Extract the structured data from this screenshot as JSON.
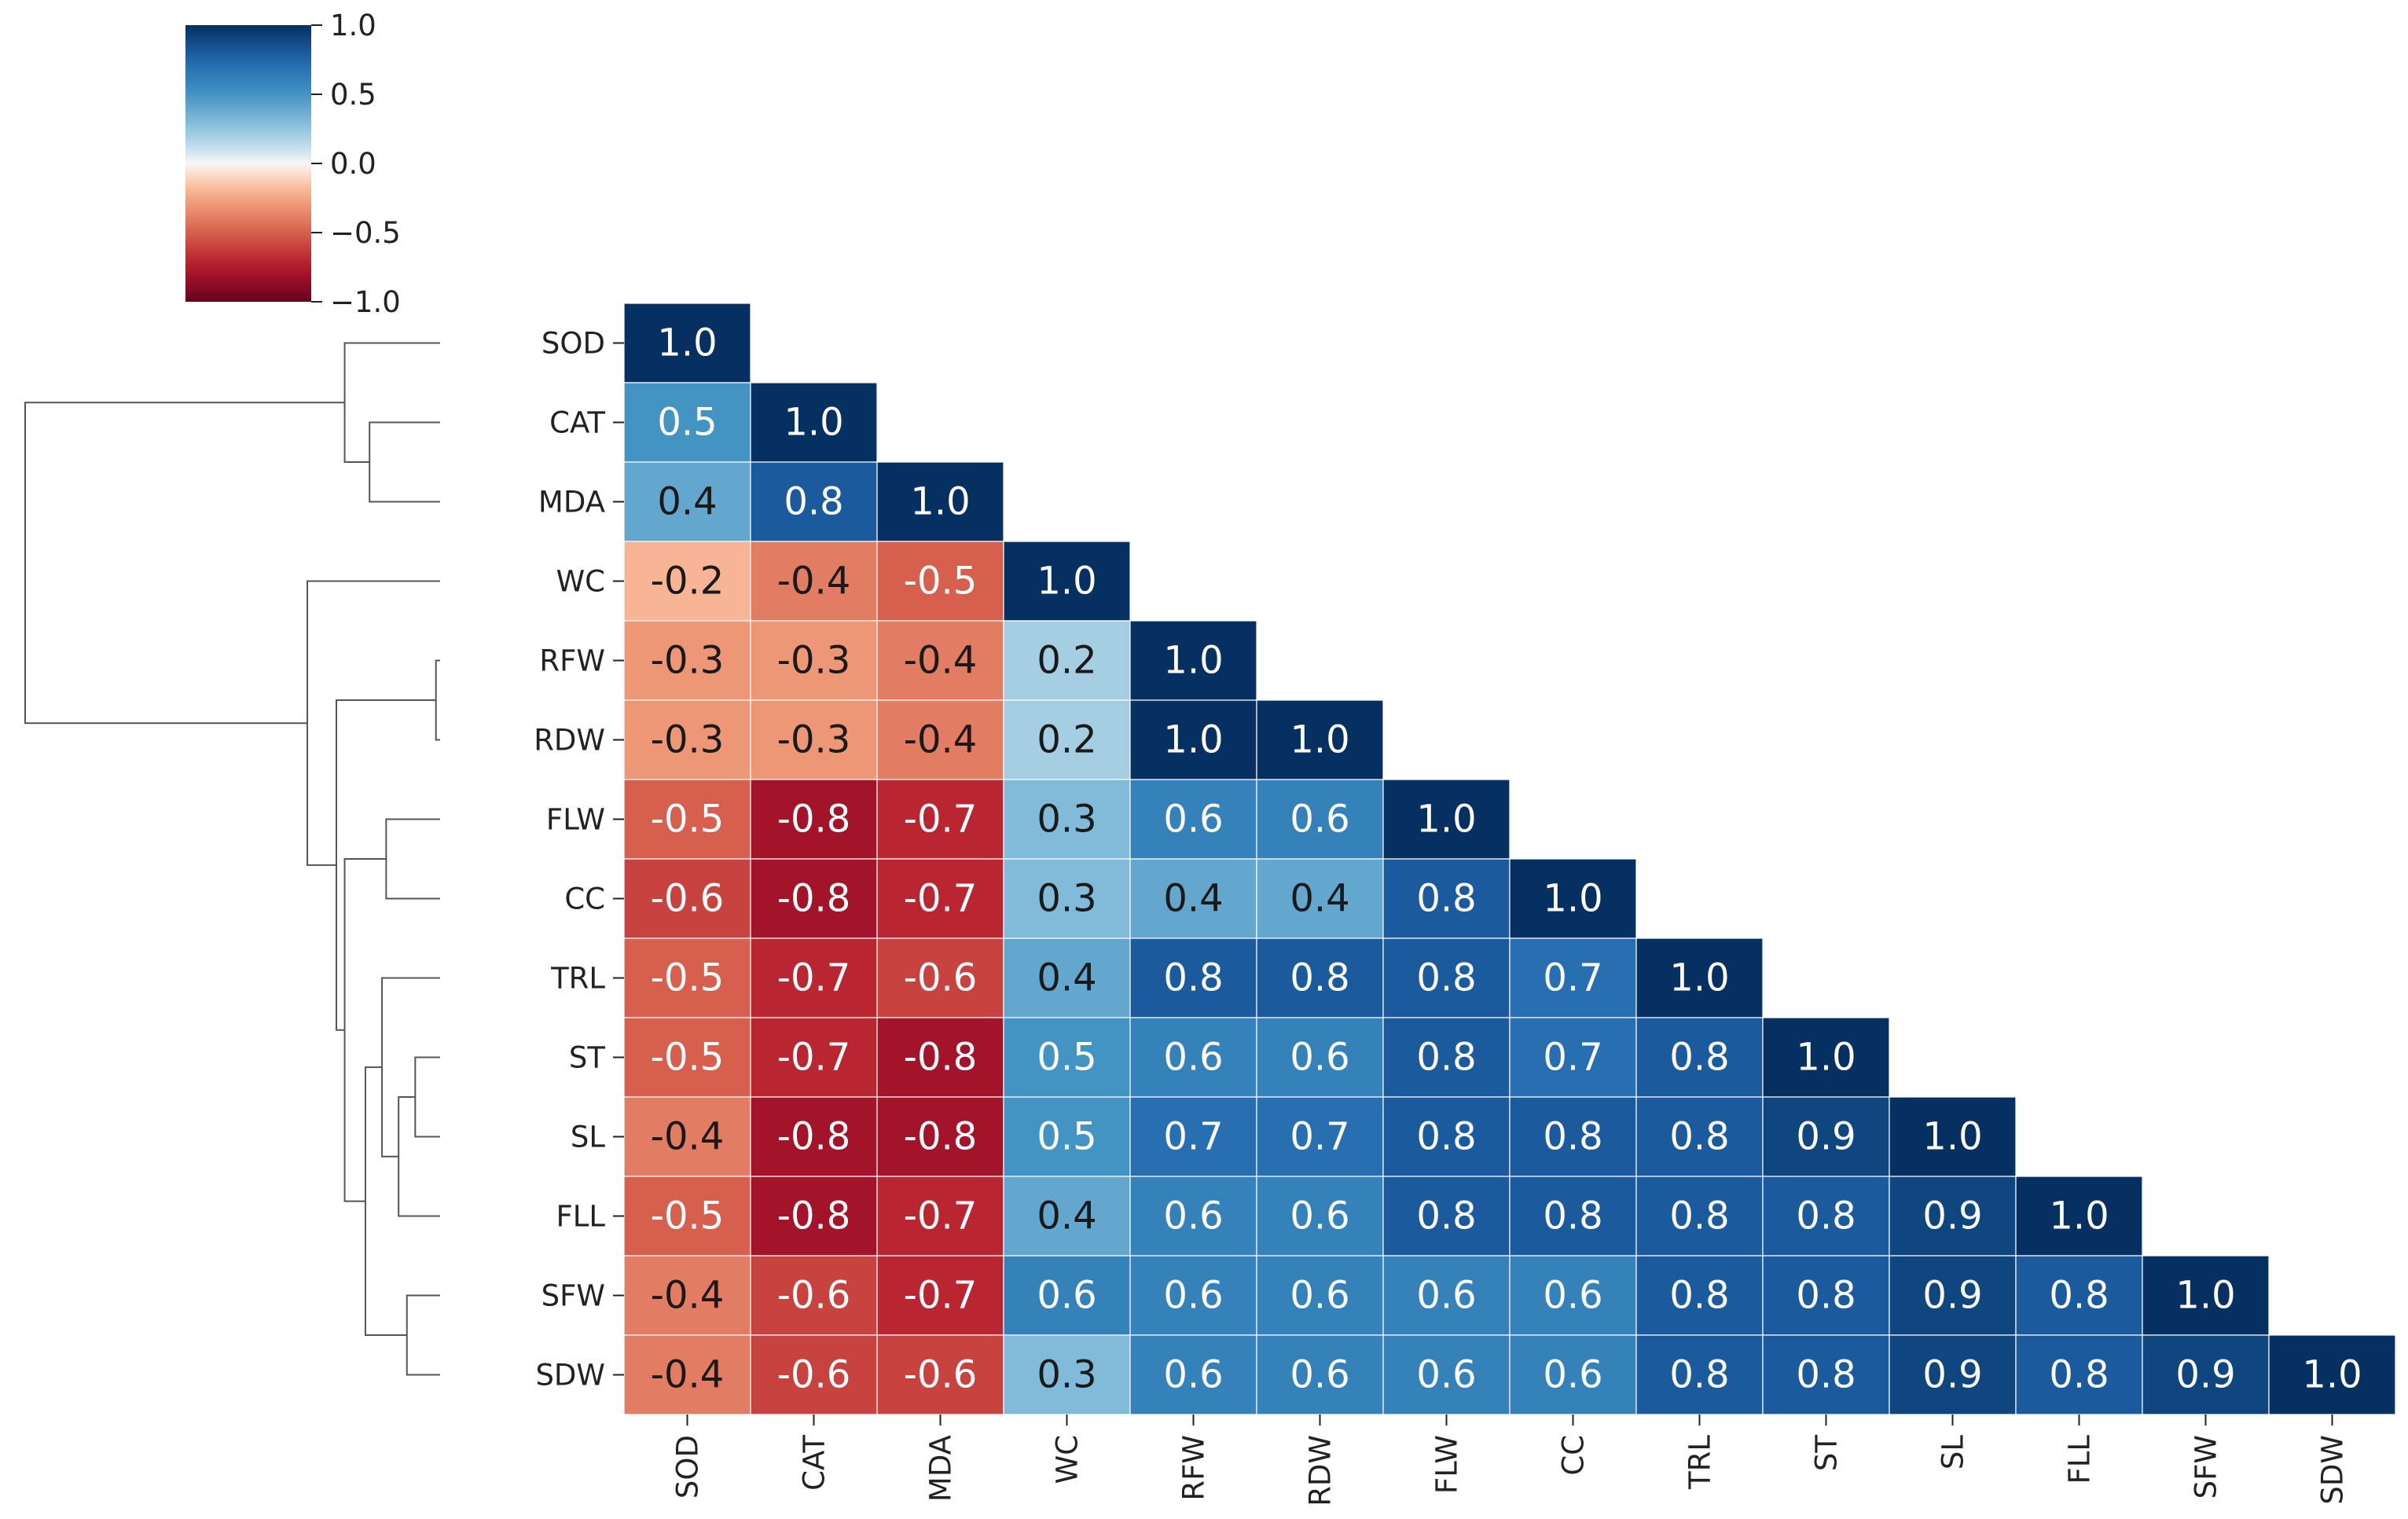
{
  "chart_data": {
    "type": "heatmap",
    "title": "",
    "variables": [
      "SOD",
      "CAT",
      "MDA",
      "WC",
      "RFW",
      "RDW",
      "FLW",
      "CC",
      "TRL",
      "ST",
      "SL",
      "FLL",
      "SFW",
      "SDW"
    ],
    "row_labels": [
      "SOD",
      "CAT",
      "MDA",
      "WC",
      "RFW",
      "RDW",
      "FLW",
      "CC",
      "TRL",
      "ST",
      "SL",
      "FLL",
      "SFW",
      "SDW"
    ],
    "col_labels": [
      "SOD",
      "CAT",
      "MDA",
      "WC",
      "RFW",
      "RDW",
      "FLW",
      "CC",
      "TRL",
      "ST",
      "SL",
      "FLL",
      "SFW",
      "SDW"
    ],
    "matrix_lower": [
      [
        1.0
      ],
      [
        0.5,
        1.0
      ],
      [
        0.4,
        0.8,
        1.0
      ],
      [
        -0.2,
        -0.4,
        -0.5,
        1.0
      ],
      [
        -0.3,
        -0.3,
        -0.4,
        0.2,
        1.0
      ],
      [
        -0.3,
        -0.3,
        -0.4,
        0.2,
        1.0,
        1.0
      ],
      [
        -0.5,
        -0.8,
        -0.7,
        0.3,
        0.6,
        0.6,
        1.0
      ],
      [
        -0.6,
        -0.8,
        -0.7,
        0.3,
        0.4,
        0.4,
        0.8,
        1.0
      ],
      [
        -0.5,
        -0.7,
        -0.6,
        0.4,
        0.8,
        0.8,
        0.8,
        0.7,
        1.0
      ],
      [
        -0.5,
        -0.7,
        -0.8,
        0.5,
        0.6,
        0.6,
        0.8,
        0.7,
        0.8,
        1.0
      ],
      [
        -0.4,
        -0.8,
        -0.8,
        0.5,
        0.7,
        0.7,
        0.8,
        0.8,
        0.8,
        0.9,
        1.0
      ],
      [
        -0.5,
        -0.8,
        -0.7,
        0.4,
        0.6,
        0.6,
        0.8,
        0.8,
        0.8,
        0.8,
        0.9,
        1.0
      ],
      [
        -0.4,
        -0.6,
        -0.7,
        0.6,
        0.6,
        0.6,
        0.6,
        0.6,
        0.8,
        0.8,
        0.9,
        0.8,
        1.0
      ],
      [
        -0.4,
        -0.6,
        -0.6,
        0.3,
        0.6,
        0.6,
        0.6,
        0.6,
        0.8,
        0.8,
        0.9,
        0.8,
        0.9,
        1.0
      ]
    ],
    "colorbar": {
      "colormap": "RdBu",
      "vmin": -1.0,
      "vmax": 1.0,
      "ticks": [
        1.0,
        0.5,
        0.0,
        -0.5,
        -1.0
      ],
      "tick_labels": [
        "1.0",
        "0.5",
        "0.0",
        "−0.5",
        "−1.0"
      ]
    },
    "dendrogram": {
      "orientation": "left",
      "merges": [
        {
          "left": "RFW",
          "right": "RDW",
          "height": 0.01
        },
        {
          "left": "ST",
          "right": "SL",
          "height": 0.06
        },
        {
          "left": "SFW",
          "right": "SDW",
          "height": 0.08
        },
        {
          "left": "(ST,SL)",
          "right": "FLL",
          "height": 0.1
        },
        {
          "left": "FLW",
          "right": "CC",
          "height": 0.13
        },
        {
          "left": "TRL",
          "right": "(ST,SL,FLL)",
          "height": 0.14
        },
        {
          "left": "CAT",
          "right": "MDA",
          "height": 0.17
        },
        {
          "left": "(TRL,ST,SL,FLL)",
          "right": "(SFW,SDW)",
          "height": 0.18
        },
        {
          "left": "(FLW,CC)",
          "right": "(TRL..SDW)",
          "height": 0.23
        },
        {
          "left": "(RFW,RDW)",
          "right": "(FLW..SDW)",
          "height": 0.25
        },
        {
          "left": "WC",
          "right": "(RFW..SDW)",
          "height": 0.32
        },
        {
          "left": "SOD",
          "right": "(CAT,MDA)",
          "height": 0.23
        },
        {
          "left": "(SOD,CAT,MDA)",
          "right": "(WC..SDW)",
          "height": 1.0
        }
      ]
    }
  }
}
